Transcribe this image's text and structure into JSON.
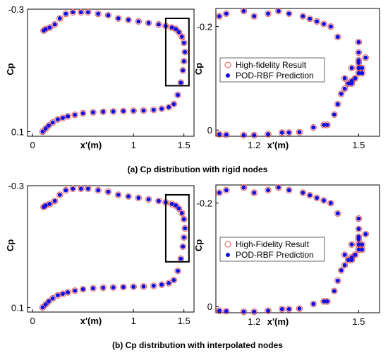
{
  "captions": {
    "a": "(a) Cp distribution with rigid nodes",
    "b": "(b) Cp distribution with interpolated nodes"
  },
  "colors": {
    "high_fidelity": "#e8534d",
    "pod_rbf": "#1010dd",
    "box": "#000000"
  },
  "chart_data": [
    {
      "type": "scatter",
      "panel": "a-full",
      "xlabel": "x'(m)",
      "ylabel": "Cp",
      "xlim": [
        -0.05,
        1.6
      ],
      "ylim": [
        0.115,
        -0.3
      ],
      "xticks": [
        0,
        1,
        1.5
      ],
      "xticklabels": [
        "0",
        "1",
        "1.5"
      ],
      "yticks": [
        -0.3,
        0.1
      ],
      "yticklabels": [
        "-0.3",
        "0.1"
      ],
      "grid": false,
      "zoom_box": {
        "x": [
          1.32,
          1.55
        ],
        "y": [
          -0.27,
          -0.05
        ]
      },
      "series": [
        {
          "marker": "open-circle",
          "color_key": "high_fidelity",
          "x": [
            0.1,
            0.13,
            0.16,
            0.2,
            0.25,
            0.3,
            0.35,
            0.42,
            0.5,
            0.6,
            0.7,
            0.8,
            0.9,
            1.0,
            1.1,
            1.2,
            1.28,
            1.35,
            1.4,
            1.44,
            1.47,
            1.49,
            1.5,
            1.51,
            1.5,
            1.48,
            1.45,
            1.42,
            1.38,
            1.32,
            1.25,
            1.15,
            1.05,
            0.95,
            0.85,
            0.75,
            0.65,
            0.55,
            0.48,
            0.4,
            0.33,
            0.27,
            0.22,
            0.17,
            0.13,
            0.11
          ],
          "y": [
            0.1,
            0.09,
            0.08,
            0.07,
            0.06,
            0.055,
            0.05,
            0.045,
            0.04,
            0.037,
            0.035,
            0.034,
            0.033,
            0.032,
            0.031,
            0.029,
            0.025,
            0.02,
            0.01,
            -0.02,
            -0.06,
            -0.1,
            -0.13,
            -0.16,
            -0.19,
            -0.21,
            -0.225,
            -0.235,
            -0.24,
            -0.245,
            -0.25,
            -0.255,
            -0.26,
            -0.265,
            -0.27,
            -0.28,
            -0.285,
            -0.29,
            -0.29,
            -0.29,
            -0.285,
            -0.27,
            -0.25,
            -0.24,
            -0.235,
            -0.23
          ]
        },
        {
          "marker": "filled-dot",
          "color_key": "pod_rbf",
          "x": [
            0.1,
            0.13,
            0.16,
            0.2,
            0.25,
            0.3,
            0.35,
            0.42,
            0.5,
            0.6,
            0.7,
            0.8,
            0.9,
            1.0,
            1.1,
            1.2,
            1.28,
            1.35,
            1.4,
            1.44,
            1.47,
            1.49,
            1.5,
            1.51,
            1.5,
            1.48,
            1.45,
            1.42,
            1.38,
            1.32,
            1.25,
            1.15,
            1.05,
            0.95,
            0.85,
            0.75,
            0.65,
            0.55,
            0.48,
            0.4,
            0.33,
            0.27,
            0.22,
            0.17,
            0.13,
            0.11
          ],
          "y": [
            0.1,
            0.09,
            0.08,
            0.07,
            0.06,
            0.055,
            0.05,
            0.045,
            0.04,
            0.037,
            0.035,
            0.034,
            0.033,
            0.032,
            0.031,
            0.029,
            0.025,
            0.02,
            0.01,
            -0.02,
            -0.06,
            -0.1,
            -0.13,
            -0.16,
            -0.19,
            -0.21,
            -0.225,
            -0.235,
            -0.24,
            -0.245,
            -0.25,
            -0.255,
            -0.26,
            -0.265,
            -0.27,
            -0.28,
            -0.285,
            -0.29,
            -0.29,
            -0.29,
            -0.285,
            -0.27,
            -0.25,
            -0.24,
            -0.235,
            -0.23
          ]
        }
      ]
    },
    {
      "type": "scatter",
      "panel": "a-zoom",
      "xlabel": "x'(m)",
      "ylabel": "Cp",
      "xlim": [
        1.09,
        1.56
      ],
      "ylim": [
        0.012,
        -0.235
      ],
      "xticks": [
        1.2,
        1.5
      ],
      "xticklabels": [
        "1.2",
        "1.5"
      ],
      "yticks": [
        -0.2,
        0
      ],
      "yticklabels": [
        "-0.2",
        "0"
      ],
      "grid": false,
      "legend": {
        "placement": "center-left",
        "entries": [
          "High-fidelity Result",
          "POD-RBF Prediction"
        ]
      },
      "series": [
        {
          "name": "High-fidelity Result",
          "marker": "open-circle",
          "color_key": "high_fidelity",
          "x": [
            1.1,
            1.12,
            1.17,
            1.2,
            1.24,
            1.28,
            1.3,
            1.33,
            1.37,
            1.4,
            1.41,
            1.43,
            1.44,
            1.45,
            1.46,
            1.48,
            1.49,
            1.5,
            1.51,
            1.52,
            1.5,
            1.5,
            1.51,
            1.49,
            1.48,
            1.47,
            1.46,
            1.48,
            1.5,
            1.5,
            1.5,
            1.44,
            1.42,
            1.4,
            1.38,
            1.36,
            1.34,
            1.3,
            1.27,
            1.24,
            1.2,
            1.17,
            1.12,
            1.1
          ],
          "y": [
            0.008,
            0.009,
            0.01,
            0.01,
            0.008,
            0.005,
            0.005,
            0.004,
            -0.005,
            -0.01,
            -0.01,
            -0.03,
            -0.05,
            -0.07,
            -0.08,
            -0.09,
            -0.1,
            -0.11,
            -0.12,
            -0.14,
            -0.13,
            -0.12,
            -0.11,
            -0.1,
            -0.095,
            -0.09,
            -0.1,
            -0.12,
            -0.135,
            -0.15,
            -0.17,
            -0.18,
            -0.2,
            -0.205,
            -0.21,
            -0.215,
            -0.22,
            -0.225,
            -0.23,
            -0.225,
            -0.22,
            -0.23,
            -0.225,
            -0.22
          ]
        },
        {
          "name": "POD-RBF Prediction",
          "marker": "filled-dot",
          "color_key": "pod_rbf",
          "x": [
            1.1,
            1.12,
            1.17,
            1.2,
            1.24,
            1.28,
            1.3,
            1.33,
            1.37,
            1.4,
            1.41,
            1.43,
            1.44,
            1.45,
            1.46,
            1.48,
            1.49,
            1.5,
            1.51,
            1.52,
            1.5,
            1.5,
            1.51,
            1.49,
            1.48,
            1.47,
            1.46,
            1.48,
            1.5,
            1.5,
            1.5,
            1.44,
            1.42,
            1.4,
            1.38,
            1.36,
            1.34,
            1.3,
            1.27,
            1.24,
            1.2,
            1.17,
            1.12,
            1.1
          ],
          "y": [
            0.008,
            0.009,
            0.01,
            0.01,
            0.008,
            0.005,
            0.005,
            0.004,
            -0.005,
            -0.01,
            -0.01,
            -0.03,
            -0.05,
            -0.07,
            -0.08,
            -0.09,
            -0.1,
            -0.11,
            -0.12,
            -0.14,
            -0.13,
            -0.12,
            -0.11,
            -0.1,
            -0.095,
            -0.09,
            -0.1,
            -0.12,
            -0.135,
            -0.15,
            -0.17,
            -0.18,
            -0.2,
            -0.205,
            -0.21,
            -0.215,
            -0.22,
            -0.225,
            -0.23,
            -0.225,
            -0.22,
            -0.23,
            -0.225,
            -0.22
          ]
        }
      ]
    },
    {
      "type": "scatter",
      "panel": "b-full",
      "xlabel": "x'(m)",
      "ylabel": "Cp",
      "xlim": [
        -0.05,
        1.6
      ],
      "ylim": [
        0.115,
        -0.3
      ],
      "xticks": [
        0,
        1,
        1.5
      ],
      "xticklabels": [
        "0",
        "1",
        "1.5"
      ],
      "yticks": [
        -0.3,
        0.1
      ],
      "yticklabels": [
        "-0.3",
        "0.1"
      ],
      "grid": false,
      "zoom_box": {
        "x": [
          1.32,
          1.55
        ],
        "y": [
          -0.27,
          -0.05
        ]
      },
      "series": [
        {
          "marker": "open-circle",
          "color_key": "high_fidelity",
          "x": [
            0.1,
            0.13,
            0.16,
            0.2,
            0.25,
            0.3,
            0.35,
            0.42,
            0.5,
            0.6,
            0.7,
            0.8,
            0.9,
            1.0,
            1.1,
            1.2,
            1.28,
            1.35,
            1.4,
            1.44,
            1.47,
            1.49,
            1.5,
            1.51,
            1.5,
            1.48,
            1.45,
            1.42,
            1.38,
            1.32,
            1.25,
            1.15,
            1.05,
            0.95,
            0.85,
            0.75,
            0.65,
            0.55,
            0.48,
            0.4,
            0.33,
            0.27,
            0.22,
            0.17,
            0.13,
            0.11
          ],
          "y": [
            0.1,
            0.09,
            0.08,
            0.07,
            0.06,
            0.055,
            0.05,
            0.045,
            0.04,
            0.037,
            0.035,
            0.034,
            0.033,
            0.032,
            0.031,
            0.029,
            0.025,
            0.02,
            0.01,
            -0.02,
            -0.06,
            -0.1,
            -0.13,
            -0.16,
            -0.19,
            -0.21,
            -0.225,
            -0.235,
            -0.24,
            -0.245,
            -0.25,
            -0.255,
            -0.26,
            -0.265,
            -0.27,
            -0.28,
            -0.285,
            -0.29,
            -0.29,
            -0.29,
            -0.285,
            -0.27,
            -0.25,
            -0.24,
            -0.235,
            -0.23
          ]
        },
        {
          "marker": "filled-dot",
          "color_key": "pod_rbf",
          "x": [
            0.1,
            0.13,
            0.16,
            0.2,
            0.25,
            0.3,
            0.35,
            0.42,
            0.5,
            0.6,
            0.7,
            0.8,
            0.9,
            1.0,
            1.1,
            1.2,
            1.28,
            1.35,
            1.4,
            1.44,
            1.47,
            1.49,
            1.5,
            1.51,
            1.5,
            1.48,
            1.45,
            1.42,
            1.38,
            1.32,
            1.25,
            1.15,
            1.05,
            0.95,
            0.85,
            0.75,
            0.65,
            0.55,
            0.48,
            0.4,
            0.33,
            0.27,
            0.22,
            0.17,
            0.13,
            0.11
          ],
          "y": [
            0.1,
            0.09,
            0.08,
            0.07,
            0.06,
            0.055,
            0.05,
            0.045,
            0.04,
            0.037,
            0.035,
            0.034,
            0.033,
            0.032,
            0.031,
            0.029,
            0.025,
            0.02,
            0.01,
            -0.02,
            -0.06,
            -0.1,
            -0.13,
            -0.16,
            -0.19,
            -0.21,
            -0.225,
            -0.235,
            -0.24,
            -0.245,
            -0.25,
            -0.255,
            -0.26,
            -0.265,
            -0.27,
            -0.28,
            -0.285,
            -0.29,
            -0.29,
            -0.29,
            -0.285,
            -0.27,
            -0.25,
            -0.24,
            -0.235,
            -0.23
          ]
        }
      ]
    },
    {
      "type": "scatter",
      "panel": "b-zoom",
      "xlabel": "x'(m)",
      "ylabel": "Cp",
      "xlim": [
        1.09,
        1.56
      ],
      "ylim": [
        0.012,
        -0.235
      ],
      "xticks": [
        1.2,
        1.5
      ],
      "xticklabels": [
        "1.2",
        "1.5"
      ],
      "yticks": [
        -0.2,
        0
      ],
      "yticklabels": [
        "-0.2",
        "0"
      ],
      "grid": false,
      "legend": {
        "placement": "center-left",
        "entries": [
          "High-Fidelity Result",
          "POD-RBF Prediction"
        ]
      },
      "series": [
        {
          "name": "High-Fidelity Result",
          "marker": "open-circle",
          "color_key": "high_fidelity",
          "x": [
            1.1,
            1.12,
            1.17,
            1.2,
            1.24,
            1.28,
            1.3,
            1.33,
            1.37,
            1.4,
            1.41,
            1.43,
            1.44,
            1.45,
            1.46,
            1.48,
            1.49,
            1.5,
            1.51,
            1.52,
            1.5,
            1.5,
            1.51,
            1.49,
            1.48,
            1.47,
            1.46,
            1.48,
            1.5,
            1.5,
            1.5,
            1.44,
            1.42,
            1.4,
            1.38,
            1.36,
            1.34,
            1.3,
            1.27,
            1.24,
            1.2,
            1.17,
            1.12,
            1.1
          ],
          "y": [
            0.008,
            0.009,
            0.01,
            0.01,
            0.008,
            0.005,
            0.005,
            0.004,
            -0.005,
            -0.01,
            -0.01,
            -0.03,
            -0.05,
            -0.07,
            -0.08,
            -0.09,
            -0.1,
            -0.11,
            -0.12,
            -0.14,
            -0.13,
            -0.12,
            -0.11,
            -0.1,
            -0.095,
            -0.09,
            -0.1,
            -0.12,
            -0.135,
            -0.15,
            -0.17,
            -0.18,
            -0.2,
            -0.205,
            -0.21,
            -0.215,
            -0.22,
            -0.225,
            -0.23,
            -0.225,
            -0.22,
            -0.23,
            -0.225,
            -0.22
          ]
        },
        {
          "name": "POD-RBF Prediction",
          "marker": "filled-dot",
          "color_key": "pod_rbf",
          "x": [
            1.1,
            1.12,
            1.17,
            1.2,
            1.24,
            1.28,
            1.3,
            1.33,
            1.37,
            1.4,
            1.41,
            1.43,
            1.44,
            1.45,
            1.46,
            1.48,
            1.49,
            1.5,
            1.51,
            1.52,
            1.5,
            1.5,
            1.51,
            1.49,
            1.48,
            1.47,
            1.46,
            1.48,
            1.5,
            1.5,
            1.5,
            1.44,
            1.42,
            1.4,
            1.38,
            1.36,
            1.34,
            1.3,
            1.27,
            1.24,
            1.2,
            1.17,
            1.12,
            1.1
          ],
          "y": [
            0.008,
            0.009,
            0.01,
            0.01,
            0.008,
            0.005,
            0.005,
            0.004,
            -0.005,
            -0.01,
            -0.01,
            -0.03,
            -0.05,
            -0.07,
            -0.08,
            -0.09,
            -0.1,
            -0.11,
            -0.12,
            -0.14,
            -0.13,
            -0.12,
            -0.11,
            -0.1,
            -0.095,
            -0.09,
            -0.1,
            -0.12,
            -0.135,
            -0.15,
            -0.17,
            -0.18,
            -0.2,
            -0.205,
            -0.21,
            -0.215,
            -0.22,
            -0.225,
            -0.23,
            -0.225,
            -0.22,
            -0.23,
            -0.225,
            -0.22
          ]
        }
      ]
    }
  ]
}
